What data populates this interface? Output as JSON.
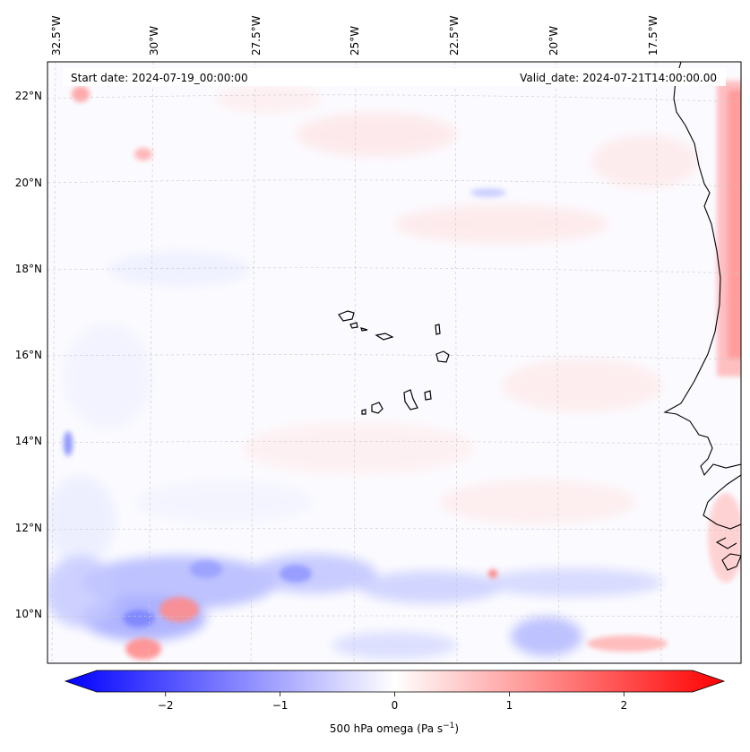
{
  "map": {
    "start_date_label": "Start date: 2024-07-19_00:00:00",
    "valid_date_label": "Valid_date: 2024-07-21T14:00:00.00",
    "longitude_labels": [
      "32.5°W",
      "30°W",
      "27.5°W",
      "25°W",
      "22.5°W",
      "20°W",
      "17.5°W"
    ],
    "latitude_labels": [
      "22°N",
      "20°N",
      "18°N",
      "16°N",
      "14°N",
      "12°N",
      "10°N"
    ],
    "region": "Cabo Verde and West African coast",
    "field": "500 hPa omega",
    "colormap": "bwr"
  },
  "colorbar": {
    "label_main": "500 hPa omega (Pa s",
    "label_exp": "−1",
    "label_end": ")",
    "range": [
      -2.6,
      2.6
    ],
    "ticks": [
      {
        "value": -2,
        "label": "−2"
      },
      {
        "value": -1,
        "label": "−1"
      },
      {
        "value": 0,
        "label": "0"
      },
      {
        "value": 1,
        "label": "1"
      },
      {
        "value": 2,
        "label": "2"
      }
    ],
    "colors": {
      "negative": "#0000ff",
      "zero": "#ffffff",
      "positive": "#ff0000"
    }
  }
}
